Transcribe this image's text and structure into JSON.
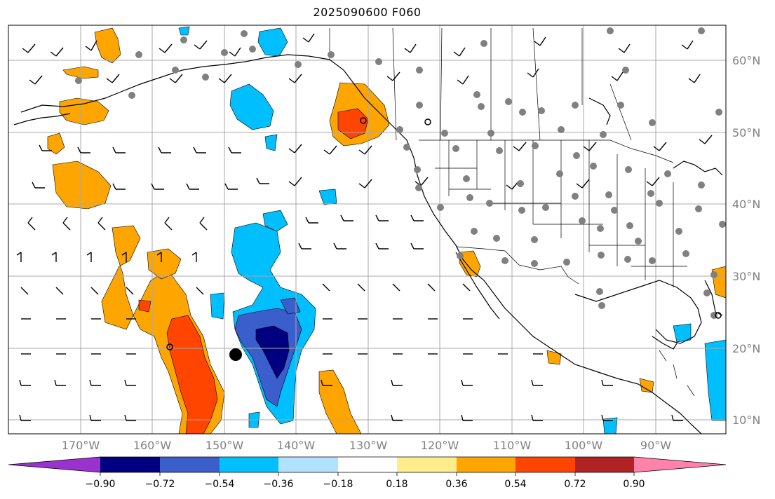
{
  "title": "2025090600 F060",
  "lat_labels": [
    "60°N",
    "50°N",
    "40°N",
    "30°N",
    "20°N",
    "10°N"
  ],
  "lon_labels": [
    "170°W",
    "160°W",
    "150°W",
    "140°W",
    "130°W",
    "120°W",
    "110°W",
    "100°W",
    "90°W"
  ],
  "colorbar": {
    "ticks": [
      "−0.90",
      "−0.72",
      "−0.54",
      "−0.36",
      "−0.18",
      "0.18",
      "0.36",
      "0.54",
      "0.72",
      "0.90"
    ],
    "colors": [
      "#9a32cd",
      "#000080",
      "#3a5fcd",
      "#00bfff",
      "#b0e2ff",
      "#ffffff",
      "#ffec8b",
      "#ffa500",
      "#ff4500",
      "#b22222",
      "#ff82ab"
    ]
  },
  "field_colors": {
    "neg_light": "#00bfff",
    "neg_mid": "#3a5fcd",
    "neg_dark": "#000080",
    "pos_light": "#ffa500",
    "pos_mid": "#ff4500",
    "pos_dark": "#b22222",
    "station": "#808080",
    "grid": "#a9a9a9"
  }
}
